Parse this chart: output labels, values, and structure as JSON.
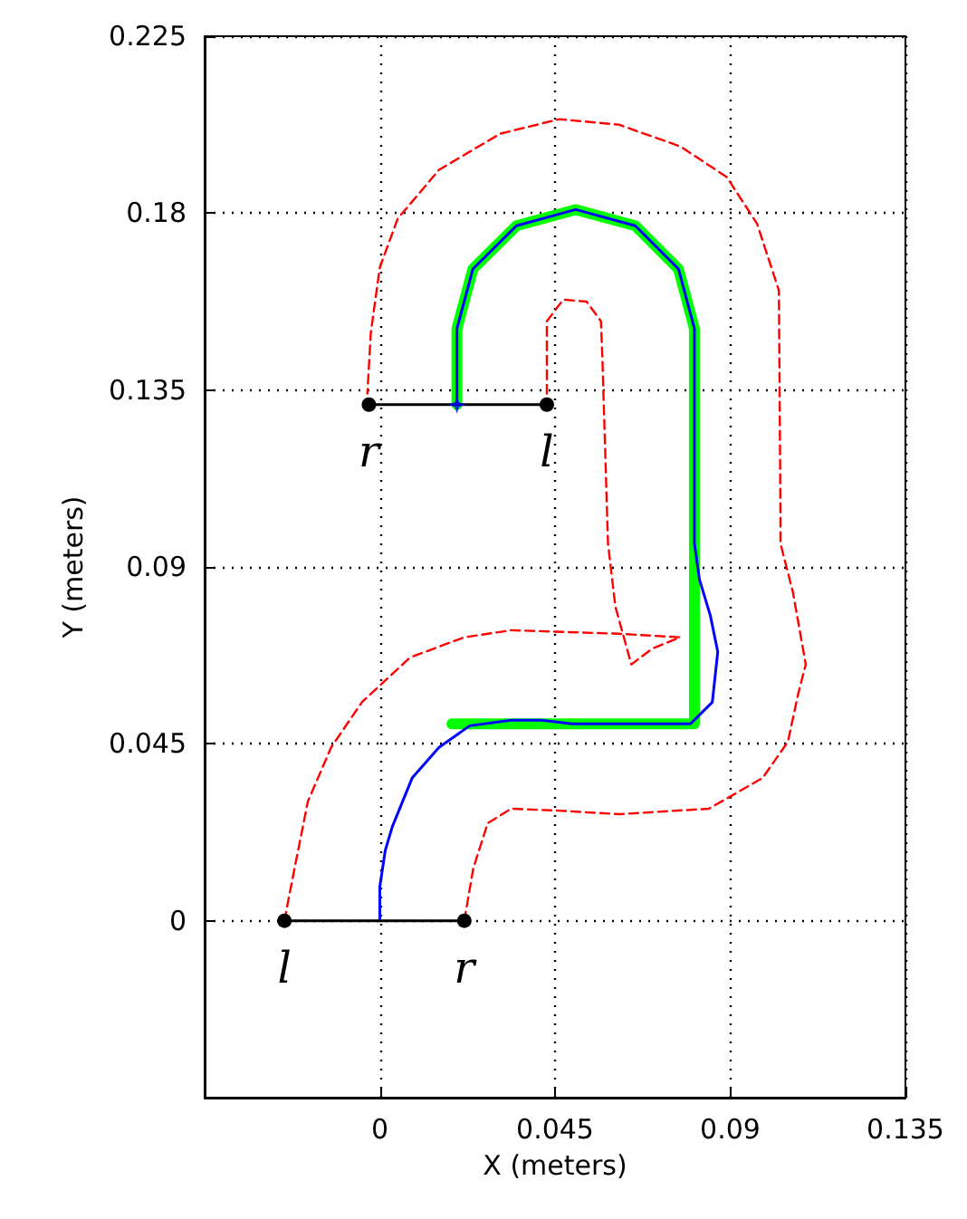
{
  "chart_data": {
    "type": "line",
    "xlabel": "X (meters)",
    "ylabel": "Y (meters)",
    "xlim": [
      -0.045,
      0.135
    ],
    "ylim": [
      -0.045,
      0.225
    ],
    "xticks": [
      0,
      0.045,
      0.09,
      0.135
    ],
    "yticks": [
      0,
      0.045,
      0.09,
      0.135,
      0.18,
      0.225
    ],
    "grid": true,
    "series": [
      {
        "color": "#00ff00",
        "line_style": "solid",
        "x": [
          0.0185,
          0.0808,
          0.0808,
          0.0767,
          0.0656,
          0.0503,
          0.0351,
          0.0239,
          0.0198,
          0.0198
        ],
        "values": [
          0.0501,
          0.0501,
          0.1506,
          0.1658,
          0.1768,
          0.1809,
          0.1768,
          0.1658,
          0.1506,
          0.1313
        ]
      },
      {
        "color": "#0000ff",
        "line_style": "solid",
        "x": [
          0,
          0,
          0.0014,
          0.0032,
          0.0083,
          0.0152,
          0.0231,
          0.0337,
          0.0415,
          0.0494,
          0.0798,
          0.0854,
          0.0868,
          0.0849,
          0.0821,
          0.0808,
          0.0808,
          0.0767,
          0.0656,
          0.0503,
          0.0351,
          0.0239,
          0.0198,
          0.0198
        ],
        "values": [
          0,
          0.0087,
          0.0179,
          0.0239,
          0.0363,
          0.0441,
          0.0496,
          0.051,
          0.051,
          0.0501,
          0.0501,
          0.0556,
          0.0684,
          0.0776,
          0.0868,
          0.096,
          0.1506,
          0.1658,
          0.1768,
          0.1809,
          0.1768,
          0.1658,
          0.1506,
          0.1313
        ]
      },
      {
        "color": "#ff0000",
        "line_style": "dashed",
        "x": [
          -0.0245,
          -0.0231,
          -0.0185,
          -0.0125,
          -0.0046,
          0.0078,
          0.0217,
          0.0337,
          0.0614,
          0.0771,
          0.0701,
          0.0646,
          0.0605,
          0.0586,
          0.0572,
          0.0568,
          0.0531,
          0.0471,
          0.0429,
          0.0429
        ],
        "values": [
          0,
          0.0073,
          0.0303,
          0.0441,
          0.0556,
          0.067,
          0.0721,
          0.0739,
          0.073,
          0.0721,
          0.0693,
          0.0652,
          0.0799,
          0.096,
          0.1419,
          0.1525,
          0.1575,
          0.158,
          0.1525,
          0.1341
        ]
      },
      {
        "color": "#ff0000",
        "line_style": "dashed",
        "x": [
          0.0217,
          0.024,
          0.0277,
          0.0337,
          0.0461,
          0.0614,
          0.0845,
          0.0983,
          0.1048,
          0.1075,
          0.1094,
          0.1061,
          0.1029,
          0.1029,
          0.1025,
          0.0969,
          0.0891,
          0.0771,
          0.0614,
          0.0461,
          0.0309,
          0.0152,
          0.0046,
          0,
          -0.0023,
          -0.0032
        ],
        "values": [
          0,
          0.0133,
          0.0248,
          0.0285,
          0.028,
          0.0271,
          0.0285,
          0.0363,
          0.0455,
          0.0579,
          0.0652,
          0.0836,
          0.096,
          0.1038,
          0.1603,
          0.1773,
          0.1892,
          0.197,
          0.2025,
          0.2039,
          0.2002,
          0.191,
          0.1786,
          0.1662,
          0.1497,
          0.1341
        ]
      },
      {
        "color": "#000000",
        "line_style": "solid",
        "marker": "circle",
        "x": [
          -0.0245,
          0.0217
        ],
        "values": [
          0,
          0
        ]
      },
      {
        "color": "#000000",
        "line_style": "solid",
        "marker": "circle",
        "x": [
          -0.0028,
          0.0429
        ],
        "values": [
          0.1313,
          0.1313
        ]
      },
      {
        "type": "scatter",
        "color": "#0000ff",
        "marker": "star",
        "x": [
          0.0198
        ],
        "values": [
          0.1313
        ]
      }
    ],
    "annotations": [
      {
        "text": "l",
        "x": -0.0245,
        "y": 0
      },
      {
        "text": "r",
        "x": 0.0217,
        "y": 0
      },
      {
        "text": "r",
        "x": -0.0028,
        "y": 0.1313
      },
      {
        "text": "l",
        "x": 0.0429,
        "y": 0.1313
      }
    ]
  }
}
